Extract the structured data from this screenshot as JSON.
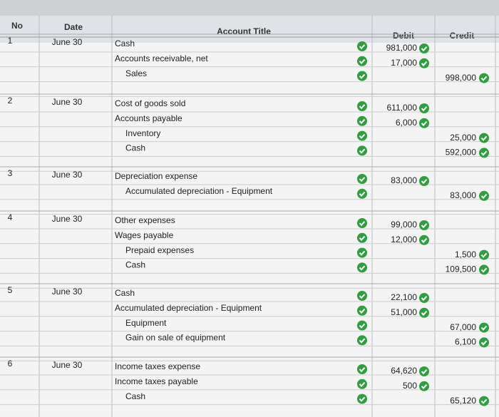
{
  "table": {
    "header": [
      "No",
      "Date",
      "Account Title",
      "Debit",
      "Credit"
    ],
    "entries": [
      {
        "no": "1",
        "date": "June 30",
        "lines": [
          {
            "account": "Cash",
            "indent": false,
            "debit": "981,000",
            "credit": null
          },
          {
            "account": "Accounts receivable, net",
            "indent": false,
            "debit": "17,000",
            "credit": null
          },
          {
            "account": "Sales",
            "indent": true,
            "debit": null,
            "credit": "998,000"
          }
        ]
      },
      {
        "no": "2",
        "date": "June 30",
        "lines": [
          {
            "account": "Cost of goods sold",
            "indent": false,
            "debit": "611,000",
            "credit": null
          },
          {
            "account": "Accounts payable",
            "indent": false,
            "debit": "6,000",
            "credit": null
          },
          {
            "account": "Inventory",
            "indent": true,
            "debit": null,
            "credit": "25,000"
          },
          {
            "account": "Cash",
            "indent": true,
            "debit": null,
            "credit": "592,000"
          }
        ]
      },
      {
        "no": "3",
        "date": "June 30",
        "lines": [
          {
            "account": "Depreciation expense",
            "indent": false,
            "debit": "83,000",
            "credit": null
          },
          {
            "account": "Accumulated depreciation - Equipment",
            "indent": true,
            "debit": null,
            "credit": "83,000"
          }
        ]
      },
      {
        "no": "4",
        "date": "June 30",
        "lines": [
          {
            "account": "Other expenses",
            "indent": false,
            "debit": "99,000",
            "credit": null
          },
          {
            "account": "Wages payable",
            "indent": false,
            "debit": "12,000",
            "credit": null
          },
          {
            "account": "Prepaid expenses",
            "indent": true,
            "debit": null,
            "credit": "1,500"
          },
          {
            "account": "Cash",
            "indent": true,
            "debit": null,
            "credit": "109,500"
          }
        ]
      },
      {
        "no": "5",
        "date": "June 30",
        "lines": [
          {
            "account": "Cash",
            "indent": false,
            "debit": "22,100",
            "credit": null
          },
          {
            "account": "Accumulated depreciation - Equipment",
            "indent": false,
            "debit": "51,000",
            "credit": null
          },
          {
            "account": "Equipment",
            "indent": true,
            "debit": null,
            "credit": "67,000"
          },
          {
            "account": "Gain on sale of equipment",
            "indent": true,
            "debit": null,
            "credit": "6,100"
          }
        ]
      },
      {
        "no": "6",
        "date": "June 30",
        "lines": [
          {
            "account": "Income taxes expense",
            "indent": false,
            "debit": "64,620",
            "credit": null
          },
          {
            "account": "Income taxes payable",
            "indent": false,
            "debit": "500",
            "credit": null
          },
          {
            "account": "Cash",
            "indent": true,
            "debit": null,
            "credit": "65,120"
          }
        ]
      }
    ]
  }
}
